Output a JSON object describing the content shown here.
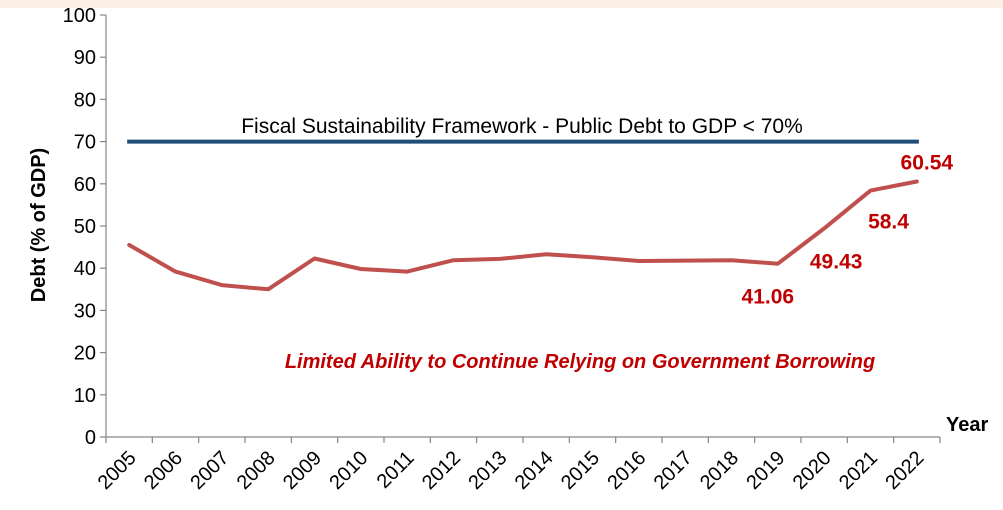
{
  "chart_data": {
    "type": "line",
    "x": [
      "2005",
      "2006",
      "2007",
      "2008",
      "2009",
      "2010",
      "2011",
      "2012",
      "2013",
      "2014",
      "2015",
      "2016",
      "2017",
      "2018",
      "2019",
      "2020",
      "2021",
      "2022"
    ],
    "series": [
      {
        "values": [
          45.5,
          39.2,
          36.0,
          35.0,
          42.3,
          39.8,
          39.2,
          41.9,
          42.2,
          43.3,
          42.6,
          41.7,
          41.8,
          41.9,
          41.06,
          49.43,
          58.4,
          60.54
        ],
        "color": "#c0504d"
      }
    ],
    "reference_line": {
      "value": 70,
      "label": "Fiscal Sustainability Framework - Public Debt to GDP < 70%",
      "color": "#1f4e79"
    },
    "data_labels": [
      {
        "x": "2019",
        "text": "41.06"
      },
      {
        "x": "2020",
        "text": "49.43"
      },
      {
        "x": "2021",
        "text": "58.4"
      },
      {
        "x": "2022",
        "text": "60.54"
      }
    ],
    "annotation": "Limited Ability to Continue Relying on Government Borrowing",
    "annotation_color": "#c00000",
    "xlabel": "Year",
    "ylabel": "Debt (% of GDP)",
    "ylim": [
      0,
      100
    ],
    "yticks": [
      0,
      10,
      20,
      30,
      40,
      50,
      60,
      70,
      80,
      90,
      100
    ],
    "grid": false
  }
}
